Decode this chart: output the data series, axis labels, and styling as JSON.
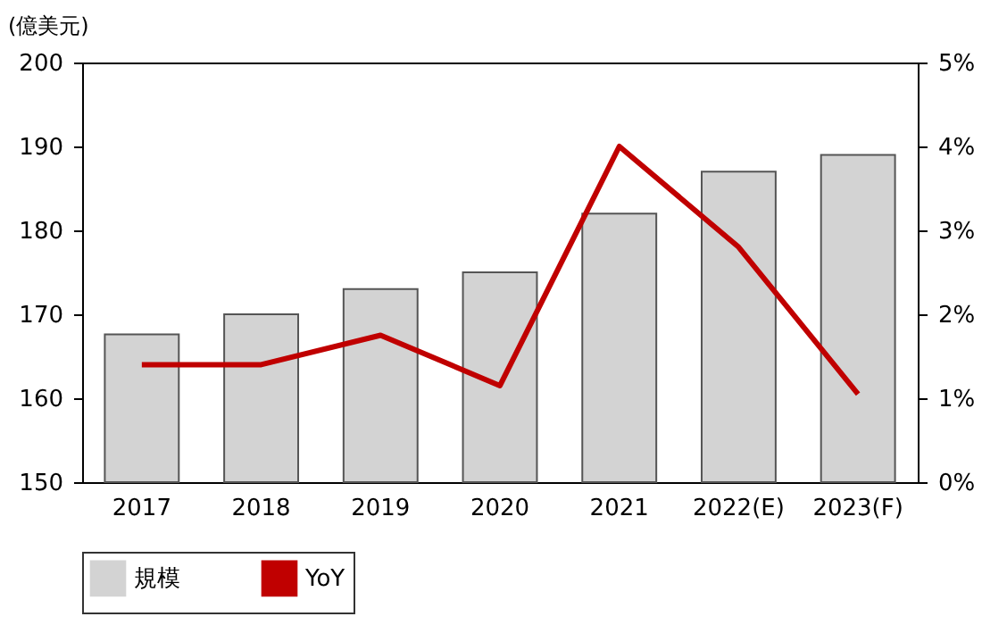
{
  "chart_data": {
    "type": "bar",
    "ylabel": "(億美元)",
    "categories": [
      "2017",
      "2018",
      "2019",
      "2020",
      "2021",
      "2022(E)",
      "2023(F)"
    ],
    "series": [
      {
        "name": "規模",
        "color": "#d3d3d3",
        "values": [
          167.6,
          170,
          173,
          175,
          182,
          187,
          189
        ]
      },
      {
        "name": "YoY",
        "type": "line",
        "axis": "y2",
        "color": "#c00000",
        "values": [
          1.4,
          1.4,
          1.75,
          1.15,
          4.0,
          2.8,
          1.05
        ]
      }
    ],
    "ylim": [
      150,
      200
    ],
    "yticks": [
      150,
      160,
      170,
      180,
      190,
      200
    ],
    "y2lim": [
      0,
      5
    ],
    "y2ticks": [
      {
        "value": 0,
        "label": "0%"
      },
      {
        "value": 1,
        "label": "1%"
      },
      {
        "value": 2,
        "label": "2%"
      },
      {
        "value": 3,
        "label": "3%"
      },
      {
        "value": 4,
        "label": "4%"
      },
      {
        "value": 5,
        "label": "5%"
      }
    ],
    "grid": false,
    "legend": "bottom",
    "marker": "none",
    "line_style": "solid"
  }
}
